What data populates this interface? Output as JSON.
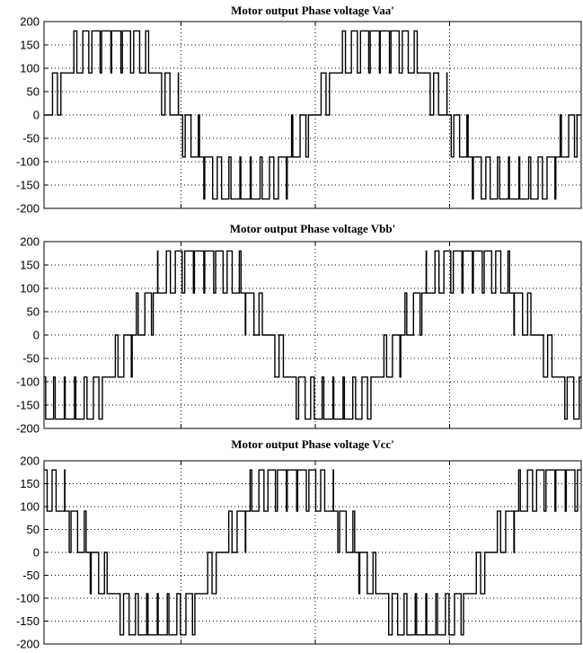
{
  "chart_data": [
    {
      "type": "line",
      "title": "Motor output Phase voltage Vaa'",
      "xlabel": "",
      "ylabel": "",
      "ylim": [
        -200,
        200
      ],
      "yticks": [
        200,
        150,
        100,
        50,
        0,
        -50,
        -100,
        -150,
        -200
      ],
      "ytick_labels": [
        "200",
        "150",
        "100",
        "50",
        "0",
        "-50",
        "-100",
        "-150",
        "-200"
      ],
      "x_range": [
        0,
        1
      ],
      "cycles": 2,
      "phase_deg": 0,
      "levels": [
        -180,
        -90,
        0,
        90,
        180
      ],
      "grid": true,
      "series": [
        {
          "description": "multilevel PWM stair-step phase voltage (approximation of the plotted waveform)",
          "color": "#000000"
        }
      ]
    },
    {
      "type": "line",
      "title": "Motor output Phase voltage Vbb'",
      "xlabel": "",
      "ylabel": "",
      "ylim": [
        -200,
        200
      ],
      "yticks": [
        200,
        150,
        100,
        50,
        0,
        -50,
        -100,
        -150,
        -200
      ],
      "ytick_labels": [
        "200",
        "150",
        "100",
        "50",
        "0",
        "-50",
        "-100",
        "-150",
        "-200"
      ],
      "x_range": [
        0,
        1
      ],
      "cycles": 2,
      "phase_deg": 120,
      "levels": [
        -180,
        -90,
        0,
        90,
        180
      ],
      "grid": true,
      "series": [
        {
          "description": "multilevel PWM stair-step phase voltage (approximation of the plotted waveform)",
          "color": "#000000"
        }
      ]
    },
    {
      "type": "line",
      "title": "Motor output Phase voltage Vcc'",
      "xlabel": "",
      "ylabel": "",
      "ylim": [
        -200,
        200
      ],
      "yticks": [
        200,
        150,
        100,
        50,
        0,
        -50,
        -100,
        -150,
        -200
      ],
      "ytick_labels": [
        "200",
        "150",
        "100",
        "50",
        "0",
        "-50",
        "-100",
        "-150",
        "-200"
      ],
      "x_range": [
        0,
        1
      ],
      "cycles": 2,
      "phase_deg": 240,
      "levels": [
        -180,
        -90,
        0,
        90,
        180
      ],
      "grid": true,
      "series": [
        {
          "description": "multilevel PWM stair-step phase voltage (approximation of the plotted waveform)",
          "color": "#000000"
        }
      ]
    }
  ]
}
